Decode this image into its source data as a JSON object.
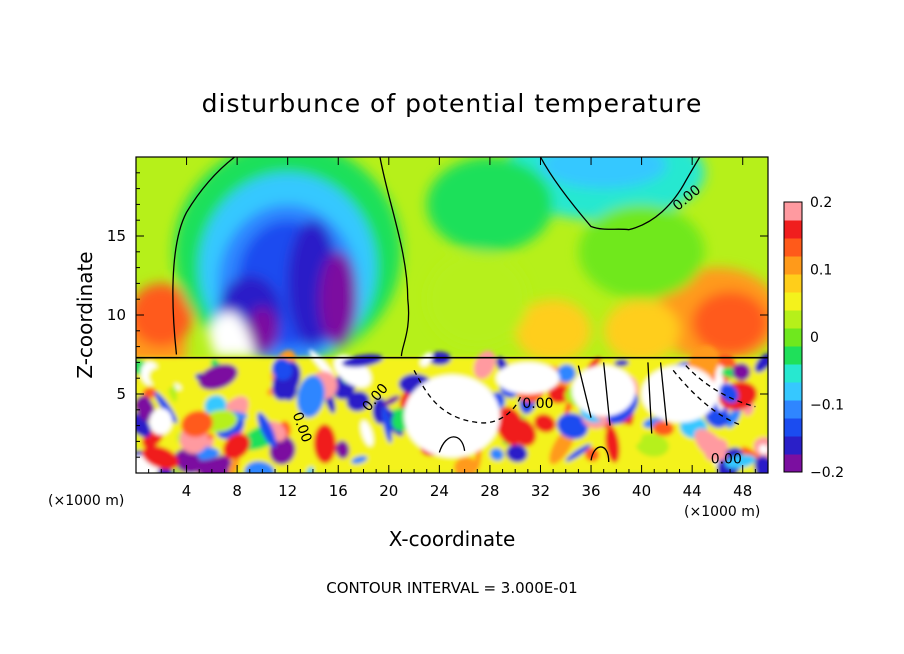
{
  "chart_data": {
    "type": "heatmap",
    "title": "disturbunce of potential temperature",
    "xlabel": "X-coordinate",
    "ylabel": "Z-coordinate",
    "x_unit": "(×1000 m)",
    "x_unit_right": "(×1000 m)",
    "xlim": [
      0,
      50
    ],
    "ylim": [
      0,
      20
    ],
    "x_ticks": [
      "4",
      "8",
      "12",
      "16",
      "20",
      "24",
      "28",
      "32",
      "36",
      "40",
      "44",
      "48"
    ],
    "y_ticks": [
      "5",
      "10",
      "15"
    ],
    "contour_labels": [
      "0.00",
      "0.00",
      "0.00",
      "0.00",
      "0.00"
    ],
    "colorbar": {
      "range": [
        -0.2,
        0.2
      ],
      "ticks": [
        "0.2",
        "0.1",
        "0",
        "−0.1",
        "−0.2"
      ],
      "colors": [
        "#7b0fa0",
        "#2a1fc8",
        "#1b4cf0",
        "#2f86ff",
        "#36c8ff",
        "#27e8d0",
        "#1fe05a",
        "#6fe81e",
        "#b6f01a",
        "#f4f21c",
        "#ffce1a",
        "#ff9a1a",
        "#ff5a1a",
        "#f01e1e",
        "#ff9aa0"
      ]
    },
    "footer": "CONTOUR INTERVAL = 3.000E-01"
  }
}
